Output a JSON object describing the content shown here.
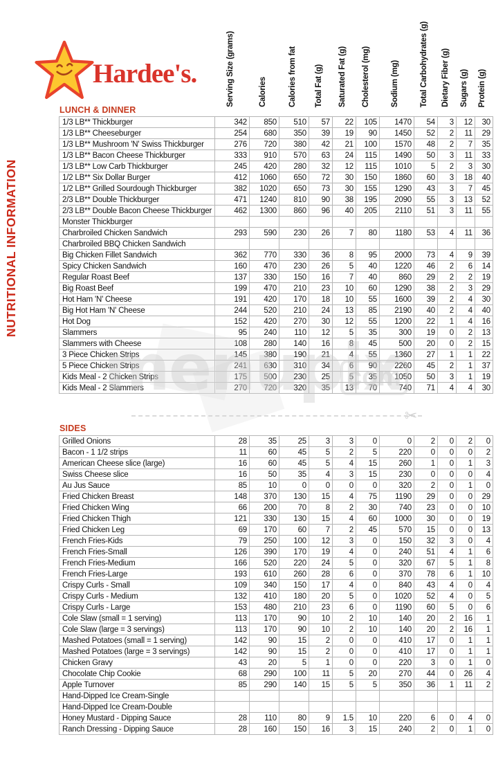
{
  "brand": {
    "name": "Hardee's."
  },
  "page_title": "NUTRITIONAL INFORMATION",
  "columns": [
    "Serving Size (grams)",
    "Calories",
    "Calories from fat",
    "Total Fat (g)",
    "Saturated Fat (g)",
    "Cholesterol (mg)",
    "Sodium (mg)",
    "Total Carbohydrates (g)",
    "Dietary Fiber (g)",
    "Sugars (g)",
    "Protein (g)"
  ],
  "sections": [
    {
      "title": "LUNCH & DINNER",
      "rows": [
        {
          "name": "1/3 LB** Thickburger",
          "values": [
            342,
            850,
            510,
            57,
            22,
            105,
            1470,
            54,
            3,
            12,
            30
          ]
        },
        {
          "name": "1/3 LB** Cheeseburger",
          "values": [
            254,
            680,
            350,
            39,
            19,
            90,
            1450,
            52,
            2,
            11,
            29
          ]
        },
        {
          "name": "1/3 LB** Mushroom 'N' Swiss Thickburger",
          "values": [
            276,
            720,
            380,
            42,
            21,
            100,
            1570,
            48,
            2,
            7,
            35
          ]
        },
        {
          "name": "1/3 LB** Bacon Cheese Thickburger",
          "values": [
            333,
            910,
            570,
            63,
            24,
            115,
            1490,
            50,
            3,
            11,
            33
          ]
        },
        {
          "name": "1/3 LB** Low Carb Thickburger",
          "values": [
            245,
            420,
            280,
            32,
            12,
            115,
            1010,
            5,
            2,
            3,
            30
          ]
        },
        {
          "name": "1/2 LB** Six Dollar Burger",
          "values": [
            412,
            1060,
            650,
            72,
            30,
            150,
            1860,
            60,
            3,
            18,
            40
          ]
        },
        {
          "name": "1/2 LB** Grilled Sourdough Thickburger",
          "values": [
            382,
            1020,
            650,
            73,
            30,
            155,
            1290,
            43,
            3,
            7,
            45
          ]
        },
        {
          "name": "2/3 LB** Double Thickburger",
          "values": [
            471,
            1240,
            810,
            90,
            38,
            195,
            2090,
            55,
            3,
            13,
            52
          ]
        },
        {
          "name": "2/3 LB** Double Bacon Cheese Thickburger",
          "values": [
            462,
            1300,
            860,
            96,
            40,
            205,
            2110,
            51,
            3,
            11,
            55
          ]
        },
        {
          "name": "Monster Thickburger",
          "values": []
        },
        {
          "name": "Charbroiled Chicken Sandwich",
          "values": [
            293,
            590,
            230,
            26,
            7,
            80,
            1180,
            53,
            4,
            11,
            36
          ]
        },
        {
          "name": "Charbroiled BBQ Chicken Sandwich",
          "values": []
        },
        {
          "name": "Big Chicken Fillet Sandwich",
          "values": [
            362,
            770,
            330,
            36,
            8,
            95,
            2000,
            73,
            4,
            9,
            39
          ]
        },
        {
          "name": "Spicy Chicken Sandwich",
          "values": [
            160,
            470,
            230,
            26,
            5,
            40,
            1220,
            46,
            2,
            6,
            14
          ]
        },
        {
          "name": "Regular Roast Beef",
          "values": [
            137,
            330,
            150,
            16,
            7,
            40,
            860,
            29,
            2,
            2,
            19
          ]
        },
        {
          "name": "Big Roast Beef",
          "values": [
            199,
            470,
            210,
            23,
            10,
            60,
            1290,
            38,
            2,
            3,
            29
          ]
        },
        {
          "name": "Hot Ham 'N' Cheese",
          "values": [
            191,
            420,
            170,
            18,
            10,
            55,
            1600,
            39,
            2,
            4,
            30
          ]
        },
        {
          "name": "Big Hot Ham 'N' Cheese",
          "values": [
            244,
            520,
            210,
            24,
            13,
            85,
            2190,
            40,
            2,
            4,
            40
          ]
        },
        {
          "name": "Hot Dog",
          "values": [
            152,
            420,
            270,
            30,
            12,
            55,
            1200,
            22,
            1,
            4,
            16
          ]
        },
        {
          "name": "Slammers",
          "values": [
            95,
            240,
            110,
            12,
            5,
            35,
            300,
            19,
            0,
            2,
            13
          ]
        },
        {
          "name": "Slammers with Cheese",
          "values": [
            108,
            280,
            140,
            16,
            8,
            45,
            500,
            20,
            0,
            2,
            15
          ]
        },
        {
          "name": "3 Piece Chicken Strips",
          "values": [
            145,
            380,
            190,
            21,
            4,
            55,
            1360,
            27,
            1,
            1,
            22
          ]
        },
        {
          "name": "5 Piece Chicken Strips",
          "values": [
            241,
            630,
            310,
            34,
            6,
            90,
            2260,
            45,
            2,
            1,
            37
          ]
        },
        {
          "name": "Kids Meal - 2 Chicken Strips",
          "values": [
            175,
            500,
            230,
            25,
            5,
            35,
            1050,
            50,
            3,
            1,
            19
          ]
        },
        {
          "name": "Kids Meal - 2 Slammers",
          "values": [
            270,
            720,
            320,
            35,
            13,
            70,
            740,
            71,
            4,
            4,
            30
          ]
        }
      ]
    },
    {
      "title": "SIDES",
      "rows": [
        {
          "name": "Grilled Onions",
          "values": [
            28,
            35,
            25,
            3,
            3,
            0,
            0,
            2,
            0,
            2,
            0
          ]
        },
        {
          "name": "Bacon - 1 1/2 strips",
          "values": [
            11,
            60,
            45,
            5,
            2,
            5,
            220,
            0,
            0,
            0,
            2
          ]
        },
        {
          "name": "American Cheese slice (large)",
          "values": [
            16,
            60,
            45,
            5,
            4,
            15,
            260,
            1,
            0,
            1,
            3
          ]
        },
        {
          "name": "Swiss Cheese slice",
          "values": [
            16,
            50,
            35,
            4,
            3,
            15,
            230,
            0,
            0,
            0,
            4
          ]
        },
        {
          "name": "Au Jus Sauce",
          "values": [
            85,
            10,
            0,
            0,
            0,
            0,
            320,
            2,
            0,
            1,
            0
          ]
        },
        {
          "name": "Fried Chicken Breast",
          "values": [
            148,
            370,
            130,
            15,
            4,
            75,
            1190,
            29,
            0,
            0,
            29
          ]
        },
        {
          "name": "Fried Chicken Wing",
          "values": [
            66,
            200,
            70,
            8,
            2,
            30,
            740,
            23,
            0,
            0,
            10
          ]
        },
        {
          "name": "Fried Chicken Thigh",
          "values": [
            121,
            330,
            130,
            15,
            4,
            60,
            1000,
            30,
            0,
            0,
            19
          ]
        },
        {
          "name": "Fried Chicken Leg",
          "values": [
            69,
            170,
            60,
            7,
            2,
            45,
            570,
            15,
            0,
            0,
            13
          ]
        },
        {
          "name": "French Fries-Kids",
          "values": [
            79,
            250,
            100,
            12,
            3,
            0,
            150,
            32,
            3,
            0,
            4
          ]
        },
        {
          "name": "French Fries-Small",
          "values": [
            126,
            390,
            170,
            19,
            4,
            0,
            240,
            51,
            4,
            1,
            6
          ]
        },
        {
          "name": "French Fries-Medium",
          "values": [
            166,
            520,
            220,
            24,
            5,
            0,
            320,
            67,
            5,
            1,
            8
          ]
        },
        {
          "name": "French Fries-Large",
          "values": [
            193,
            610,
            260,
            28,
            6,
            0,
            370,
            78,
            6,
            1,
            10
          ]
        },
        {
          "name": "Crispy Curls - Small",
          "values": [
            109,
            340,
            150,
            17,
            4,
            0,
            840,
            43,
            4,
            0,
            4
          ]
        },
        {
          "name": "Crispy Curls - Medium",
          "values": [
            132,
            410,
            180,
            20,
            5,
            0,
            1020,
            52,
            4,
            0,
            5
          ]
        },
        {
          "name": "Crispy Curls - Large",
          "values": [
            153,
            480,
            210,
            23,
            6,
            0,
            1190,
            60,
            5,
            0,
            6
          ]
        },
        {
          "name": "Cole Slaw (small = 1 serving)",
          "values": [
            113,
            170,
            90,
            10,
            2,
            10,
            140,
            20,
            2,
            16,
            1
          ]
        },
        {
          "name": "Cole Slaw (large = 3 servings)",
          "values": [
            113,
            170,
            90,
            10,
            2,
            10,
            140,
            20,
            2,
            16,
            1
          ]
        },
        {
          "name": "Mashed Potatoes (small = 1 serving)",
          "values": [
            142,
            90,
            15,
            2,
            0,
            0,
            410,
            17,
            0,
            1,
            1
          ]
        },
        {
          "name": "Mashed Potatoes (large = 3 servings)",
          "values": [
            142,
            90,
            15,
            2,
            0,
            0,
            410,
            17,
            0,
            1,
            1
          ]
        },
        {
          "name": "Chicken Gravy",
          "values": [
            43,
            20,
            5,
            1,
            0,
            0,
            220,
            3,
            0,
            1,
            0
          ]
        },
        {
          "name": "Chocolate Chip Cookie",
          "values": [
            68,
            290,
            100,
            11,
            5,
            20,
            270,
            44,
            0,
            26,
            4
          ]
        },
        {
          "name": "Apple Turnover",
          "values": [
            85,
            290,
            140,
            15,
            5,
            5,
            350,
            36,
            1,
            11,
            2
          ]
        },
        {
          "name": "Hand-Dipped Ice Cream-Single",
          "values": []
        },
        {
          "name": "Hand-Dipped Ice Cream-Double",
          "values": []
        },
        {
          "name": "Honey Mustard - Dipping Sauce",
          "values": [
            28,
            110,
            80,
            9,
            1.5,
            10,
            220,
            6,
            0,
            4,
            0
          ]
        },
        {
          "name": "Ranch Dressing - Dipping Sauce",
          "values": [
            28,
            160,
            150,
            16,
            3,
            15,
            240,
            2,
            0,
            1,
            0
          ]
        }
      ]
    }
  ],
  "watermark": {
    "text": "menupix",
    "suffix": "com"
  },
  "colors": {
    "brand_red": "#d9342b",
    "accent_red": "#c63a1e",
    "star_yellow": "#fdc72f",
    "star_outline": "#e8432b",
    "grid_gray": "#b5b5b5"
  }
}
